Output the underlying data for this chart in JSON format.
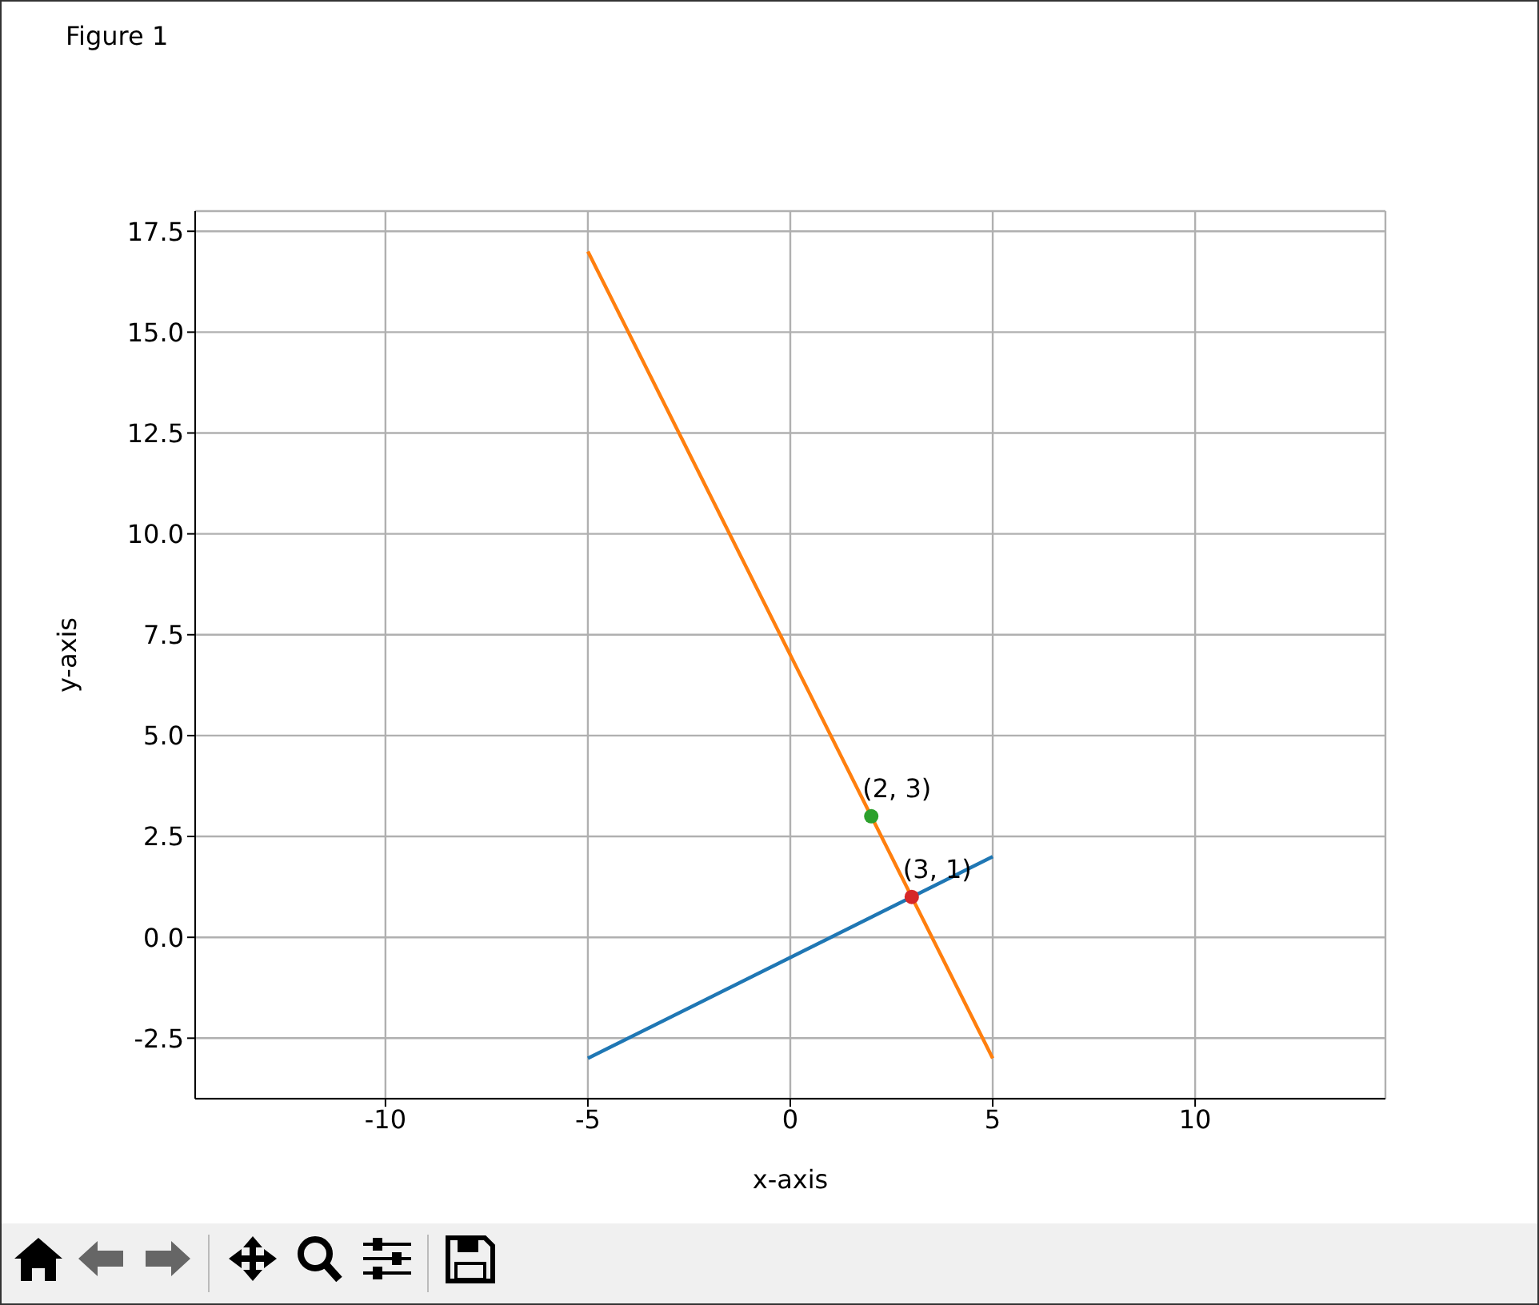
{
  "chart_data": {
    "type": "line",
    "xlabel": "x-axis",
    "ylabel": "y-axis",
    "annotations": [
      "Figure 1",
      {
        "text": "(2, 3)",
        "x": 2,
        "y": 3
      },
      {
        "text": "(3, 1)",
        "x": 3,
        "y": 1
      }
    ],
    "series": [
      {
        "color": "#1f77b4",
        "x": [
          -5,
          5
        ],
        "values": [
          -3,
          2
        ],
        "marker": "none"
      },
      {
        "color": "#ff7f0e",
        "x": [
          -5,
          5
        ],
        "values": [
          17,
          -3
        ],
        "marker": "none"
      },
      {
        "type": "scatter",
        "color": "#2ca02c",
        "x": [
          2
        ],
        "values": [
          3
        ],
        "marker": "circle"
      },
      {
        "type": "scatter",
        "color": "#d62728",
        "x": [
          3
        ],
        "values": [
          1
        ],
        "marker": "circle"
      }
    ],
    "xlim": [
      -14.7,
      14.7
    ],
    "xticks": [
      -10,
      -5,
      0,
      5,
      10
    ],
    "ylim": [
      -4,
      18
    ],
    "yticks": [
      {
        "value": -2.5,
        "label": "-2.5"
      },
      {
        "value": 0,
        "label": "0.0"
      },
      {
        "value": 2.5,
        "label": "2.5"
      },
      {
        "value": 5,
        "label": "5.0"
      },
      {
        "value": 7.5,
        "label": "7.5"
      },
      {
        "value": 10,
        "label": "10.0"
      },
      {
        "value": 12.5,
        "label": "12.5"
      },
      {
        "value": 15,
        "label": "15.0"
      },
      {
        "value": 17.5,
        "label": "17.5"
      }
    ],
    "grid": true
  }
}
